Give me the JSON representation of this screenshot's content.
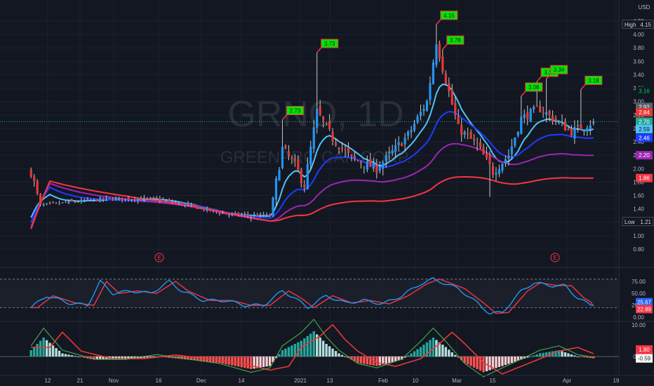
{
  "header": {
    "currency": "USD"
  },
  "watermark": {
    "symbol": "GRNO, 1D",
    "company": "GREENPRO CAP CORP."
  },
  "price_axis": {
    "ticks": [
      "4.20",
      "4.00",
      "3.80",
      "3.60",
      "3.40",
      "3.20",
      "3.00",
      "2.80",
      "2.60",
      "2.40",
      "2.20",
      "2.00",
      "1.80",
      "1.60",
      "1.40",
      "1.20",
      "1.00",
      "0.80"
    ]
  },
  "osc_axis": {
    "ticks": [
      "75.00",
      "50.00",
      "25.00",
      "0.00"
    ]
  },
  "macd_axis": {
    "ticks": [
      "10.00",
      "0.00"
    ]
  },
  "time_axis": {
    "labels": [
      "12",
      "21",
      "Nov",
      "16",
      "Dec",
      "14",
      "2021",
      "13",
      "Feb",
      "10",
      "Mar",
      "15",
      "Apr",
      "19"
    ]
  },
  "badges": {
    "high": {
      "label": "High",
      "value": "4.15"
    },
    "low": {
      "label": "Low",
      "value": "1.21"
    },
    "price_tags": [
      {
        "value": "3.16",
        "bg": "#0b1f1a",
        "fg": "#26a69a"
      },
      {
        "value": "2.92",
        "bg": "#5d606b",
        "fg": "#ffffff"
      },
      {
        "value": "2.84",
        "bg": "#e53935",
        "fg": "#ffffff"
      },
      {
        "value": "2.70",
        "bg": "#26a69a",
        "fg": "#ffffff"
      },
      {
        "value": "2.59",
        "bg": "#4fc3f7",
        "fg": "#131722"
      },
      {
        "value": "2.46",
        "bg": "#1e3cff",
        "fg": "#ffffff"
      },
      {
        "value": "2.20",
        "bg": "#9c27b0",
        "fg": "#ffffff"
      },
      {
        "value": "1.86",
        "bg": "#f23645",
        "fg": "#ffffff"
      }
    ],
    "osc_tags": [
      {
        "value": "25.67",
        "bg": "#2962ff",
        "fg": "#ffffff"
      },
      {
        "value": "22.89",
        "bg": "#f23645",
        "fg": "#ffffff"
      }
    ],
    "macd_tags": [
      {
        "value": "1.80",
        "bg": "#f23645",
        "fg": "#ffffff"
      },
      {
        "value": "1.21",
        "bg": "#f23645",
        "fg": "#ffffff"
      },
      {
        "value": "-0.59",
        "bg": "#ffffff",
        "fg": "#131722"
      }
    ]
  },
  "earnings_markers": [
    "E",
    "E"
  ],
  "chart_data": {
    "type": "candlestick",
    "title": "GRNO, 1D",
    "ylim": [
      0.8,
      4.2
    ],
    "pivot_labels": [
      {
        "day": 80,
        "value": 2.73
      },
      {
        "day": 91,
        "value": 3.73
      },
      {
        "day": 129,
        "value": 4.15
      },
      {
        "day": 131,
        "value": 3.78
      },
      {
        "day": 156,
        "value": 3.08
      },
      {
        "day": 161,
        "value": 3.3
      },
      {
        "day": 164,
        "value": 3.34
      },
      {
        "day": 175,
        "value": 3.18
      }
    ],
    "moving_averages": [
      {
        "color": "#4fc3f7",
        "last": 2.59
      },
      {
        "color": "#1e3cff",
        "last": 2.46
      },
      {
        "color": "#9c27b0",
        "last": 2.2
      },
      {
        "color": "#f23645",
        "last": 1.86
      }
    ],
    "stochastic": {
      "k_last": 25.67,
      "d_last": 22.89,
      "levels": [
        80,
        20
      ]
    },
    "macd": {
      "last": -0.59,
      "signal_labels": [
        1.8,
        1.21
      ]
    },
    "high": 4.15,
    "low": 1.21,
    "last_close": 2.7
  }
}
